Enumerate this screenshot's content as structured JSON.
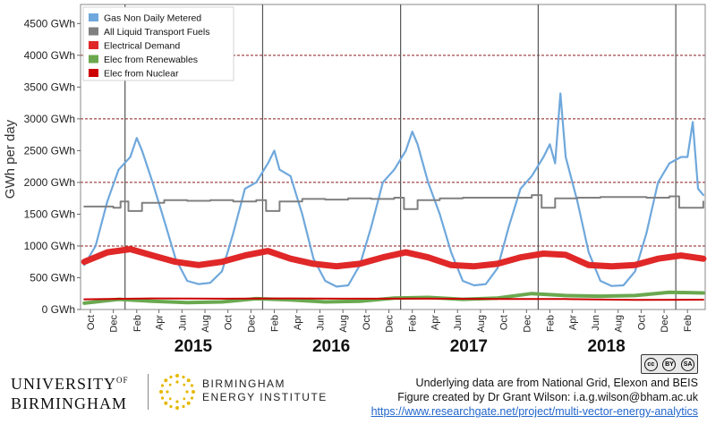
{
  "chart_data": {
    "type": "line",
    "ylabel": "GWh per day",
    "ylim": [
      0,
      4800
    ],
    "yticks": [
      {
        "value": 0,
        "label": "0 GWh"
      },
      {
        "value": 500,
        "label": "500 GWh"
      },
      {
        "value": 1000,
        "label": "1000 GWh"
      },
      {
        "value": 1500,
        "label": "1500 GWh"
      },
      {
        "value": 2000,
        "label": "2000 GWh"
      },
      {
        "value": 2500,
        "label": "2500 GWh"
      },
      {
        "value": 3000,
        "label": "3000 GWh"
      },
      {
        "value": 3500,
        "label": "3500 GWh"
      },
      {
        "value": 4000,
        "label": "4000 GWh"
      },
      {
        "value": 4500,
        "label": "4500 GWh"
      }
    ],
    "dashed_gridlines": [
      1000,
      2000,
      3000,
      4000
    ],
    "xlim": [
      "2014-09-05",
      "2019-03-20"
    ],
    "month_ticks": [
      {
        "date": "2014-10-01",
        "label": "Oct"
      },
      {
        "date": "2014-12-01",
        "label": "Dec"
      },
      {
        "date": "2015-02-01",
        "label": "Feb"
      },
      {
        "date": "2015-04-01",
        "label": "Apr"
      },
      {
        "date": "2015-06-01",
        "label": "Jun"
      },
      {
        "date": "2015-08-01",
        "label": "Aug"
      },
      {
        "date": "2015-10-01",
        "label": "Oct"
      },
      {
        "date": "2015-12-01",
        "label": "Dec"
      },
      {
        "date": "2016-02-01",
        "label": "Feb"
      },
      {
        "date": "2016-04-01",
        "label": "Apr"
      },
      {
        "date": "2016-06-01",
        "label": "Jun"
      },
      {
        "date": "2016-08-01",
        "label": "Aug"
      },
      {
        "date": "2016-10-01",
        "label": "Oct"
      },
      {
        "date": "2016-12-01",
        "label": "Dec"
      },
      {
        "date": "2017-02-01",
        "label": "Feb"
      },
      {
        "date": "2017-04-01",
        "label": "Apr"
      },
      {
        "date": "2017-06-01",
        "label": "Jun"
      },
      {
        "date": "2017-08-01",
        "label": "Aug"
      },
      {
        "date": "2017-10-01",
        "label": "Oct"
      },
      {
        "date": "2017-12-01",
        "label": "Dec"
      },
      {
        "date": "2018-02-01",
        "label": "Feb"
      },
      {
        "date": "2018-04-01",
        "label": "Apr"
      },
      {
        "date": "2018-06-01",
        "label": "Jun"
      },
      {
        "date": "2018-08-01",
        "label": "Aug"
      },
      {
        "date": "2018-10-01",
        "label": "Oct"
      },
      {
        "date": "2018-12-01",
        "label": "Dec"
      },
      {
        "date": "2019-02-01",
        "label": "Feb"
      }
    ],
    "year_dividers": [
      "2015-01-01",
      "2016-01-01",
      "2017-01-01",
      "2018-01-01",
      "2019-01-01"
    ],
    "year_labels": [
      {
        "label": "2015",
        "center": "2015-07-01"
      },
      {
        "label": "2016",
        "center": "2016-07-01"
      },
      {
        "label": "2017",
        "center": "2017-07-01"
      },
      {
        "label": "2018",
        "center": "2018-07-01"
      }
    ],
    "legend_position": "top-left",
    "series": [
      {
        "name": "Gas Non Daily Metered",
        "color": "#6fa8dc",
        "x": [
          "2014-09-15",
          "2014-10-15",
          "2014-11-15",
          "2014-12-15",
          "2015-01-15",
          "2015-02-01",
          "2015-02-15",
          "2015-03-15",
          "2015-04-15",
          "2015-05-15",
          "2015-06-15",
          "2015-07-15",
          "2015-08-15",
          "2015-09-15",
          "2015-10-15",
          "2015-11-15",
          "2015-12-15",
          "2016-01-15",
          "2016-02-01",
          "2016-02-15",
          "2016-03-15",
          "2016-04-15",
          "2016-05-15",
          "2016-06-15",
          "2016-07-15",
          "2016-08-15",
          "2016-09-15",
          "2016-10-15",
          "2016-11-15",
          "2016-12-15",
          "2017-01-15",
          "2017-02-01",
          "2017-02-15",
          "2017-03-15",
          "2017-04-15",
          "2017-05-15",
          "2017-06-15",
          "2017-07-15",
          "2017-08-15",
          "2017-09-15",
          "2017-10-15",
          "2017-11-15",
          "2017-12-15",
          "2018-01-15",
          "2018-02-01",
          "2018-02-15",
          "2018-03-01",
          "2018-03-15",
          "2018-04-15",
          "2018-05-15",
          "2018-06-15",
          "2018-07-15",
          "2018-08-15",
          "2018-09-15",
          "2018-10-15",
          "2018-11-15",
          "2018-12-15",
          "2019-01-15",
          "2019-02-01",
          "2019-02-15",
          "2019-03-01",
          "2019-03-15"
        ],
        "values": [
          700,
          1000,
          1700,
          2200,
          2400,
          2700,
          2500,
          2000,
          1400,
          800,
          450,
          400,
          420,
          600,
          1200,
          1900,
          2000,
          2300,
          2500,
          2200,
          2100,
          1500,
          800,
          450,
          360,
          380,
          700,
          1300,
          2000,
          2200,
          2500,
          2800,
          2600,
          2000,
          1500,
          900,
          450,
          380,
          400,
          650,
          1300,
          1900,
          2100,
          2400,
          2600,
          2300,
          3400,
          2400,
          1700,
          900,
          450,
          370,
          380,
          600,
          1200,
          2000,
          2300,
          2400,
          2400,
          2950,
          1900,
          1800
        ]
      },
      {
        "name": "All Liquid Transport Fuels",
        "color": "#808080",
        "x": [
          "2014-09-15",
          "2014-12-01",
          "2014-12-20",
          "2015-01-10",
          "2015-02-15",
          "2015-04-15",
          "2015-06-15",
          "2015-08-15",
          "2015-10-15",
          "2015-12-15",
          "2016-01-10",
          "2016-02-15",
          "2016-04-15",
          "2016-06-15",
          "2016-08-15",
          "2016-10-15",
          "2016-12-15",
          "2017-01-10",
          "2017-02-15",
          "2017-04-15",
          "2017-06-15",
          "2017-08-15",
          "2017-10-15",
          "2017-12-15",
          "2018-01-10",
          "2018-02-15",
          "2018-04-15",
          "2018-06-15",
          "2018-08-15",
          "2018-10-15",
          "2018-12-15",
          "2019-01-10",
          "2019-03-15"
        ],
        "values": [
          1620,
          1600,
          1700,
          1550,
          1680,
          1720,
          1710,
          1720,
          1700,
          1720,
          1550,
          1700,
          1740,
          1730,
          1750,
          1740,
          1760,
          1580,
          1720,
          1750,
          1760,
          1760,
          1760,
          1800,
          1600,
          1750,
          1760,
          1770,
          1770,
          1760,
          1780,
          1600,
          1700
        ]
      },
      {
        "name": "Electrical Demand",
        "color": "#e02828",
        "x": [
          "2014-09-15",
          "2014-11-15",
          "2015-01-15",
          "2015-03-15",
          "2015-05-15",
          "2015-07-15",
          "2015-09-15",
          "2015-11-15",
          "2016-01-15",
          "2016-03-15",
          "2016-05-15",
          "2016-07-15",
          "2016-09-15",
          "2016-11-15",
          "2017-01-15",
          "2017-03-15",
          "2017-05-15",
          "2017-07-15",
          "2017-09-15",
          "2017-11-15",
          "2018-01-15",
          "2018-03-15",
          "2018-05-15",
          "2018-07-15",
          "2018-09-15",
          "2018-11-15",
          "2019-01-15",
          "2019-03-15"
        ],
        "values": [
          750,
          900,
          950,
          850,
          750,
          700,
          750,
          850,
          920,
          800,
          720,
          680,
          720,
          820,
          900,
          820,
          700,
          680,
          720,
          820,
          880,
          860,
          700,
          680,
          700,
          800,
          850,
          800
        ]
      },
      {
        "name": "Elec from Renewables",
        "color": "#6aa84f",
        "x": [
          "2014-09-15",
          "2014-12-15",
          "2015-03-15",
          "2015-06-15",
          "2015-09-15",
          "2015-12-15",
          "2016-03-15",
          "2016-06-15",
          "2016-09-15",
          "2016-12-15",
          "2017-03-15",
          "2017-06-15",
          "2017-09-15",
          "2017-12-15",
          "2018-03-15",
          "2018-06-15",
          "2018-09-15",
          "2018-12-15",
          "2019-03-15"
        ],
        "values": [
          100,
          160,
          130,
          110,
          120,
          170,
          150,
          120,
          130,
          180,
          190,
          160,
          180,
          250,
          220,
          210,
          220,
          270,
          260
        ]
      },
      {
        "name": "Elec from Nuclear",
        "color": "#cc0000",
        "x": [
          "2014-09-15",
          "2015-03-15",
          "2015-09-15",
          "2016-03-15",
          "2016-09-15",
          "2017-03-15",
          "2017-09-15",
          "2018-03-15",
          "2018-09-15",
          "2019-03-15"
        ],
        "values": [
          160,
          175,
          170,
          175,
          170,
          170,
          165,
          165,
          150,
          155
        ]
      }
    ]
  },
  "footer": {
    "uob_line1": "UNIVERSITY",
    "uob_of": "OF",
    "uob_line2": "BIRMINGHAM",
    "bei_line1": "BIRMINGHAM",
    "bei_line2": "ENERGY INSTITUTE",
    "credit_line1": "Underlying data are from National Grid, Elexon and BEIS",
    "credit_line2": "Figure created by Dr Grant Wilson: i.a.g.wilson@bham.ac.uk",
    "credit_link": "https://www.researchgate.net/project/multi-vector-energy-analytics",
    "cc_badge": [
      "cc",
      "BY",
      "SA"
    ]
  }
}
